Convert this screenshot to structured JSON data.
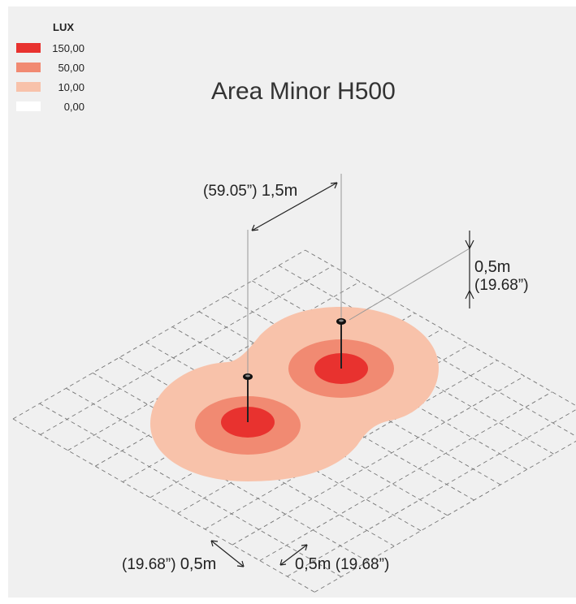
{
  "title": "Area Minor H500",
  "legend": {
    "title": "LUX",
    "items": [
      {
        "value": "150,00",
        "color": "#e8322f"
      },
      {
        "value": "50,00",
        "color": "#f18a72"
      },
      {
        "value": "10,00",
        "color": "#f8c2aa"
      },
      {
        "value": "0,00",
        "color": "#ffffff"
      }
    ]
  },
  "dimensions": {
    "spacing": {
      "metric": "1,5m",
      "imperial": "(59.05”)"
    },
    "height": {
      "metric": "0,5m",
      "imperial": "(19.68”)"
    },
    "grid_left": {
      "metric": "0,5m",
      "imperial": "(19.68”)"
    },
    "grid_right": {
      "metric": "0,5m",
      "imperial": "(19.68”)"
    }
  }
}
